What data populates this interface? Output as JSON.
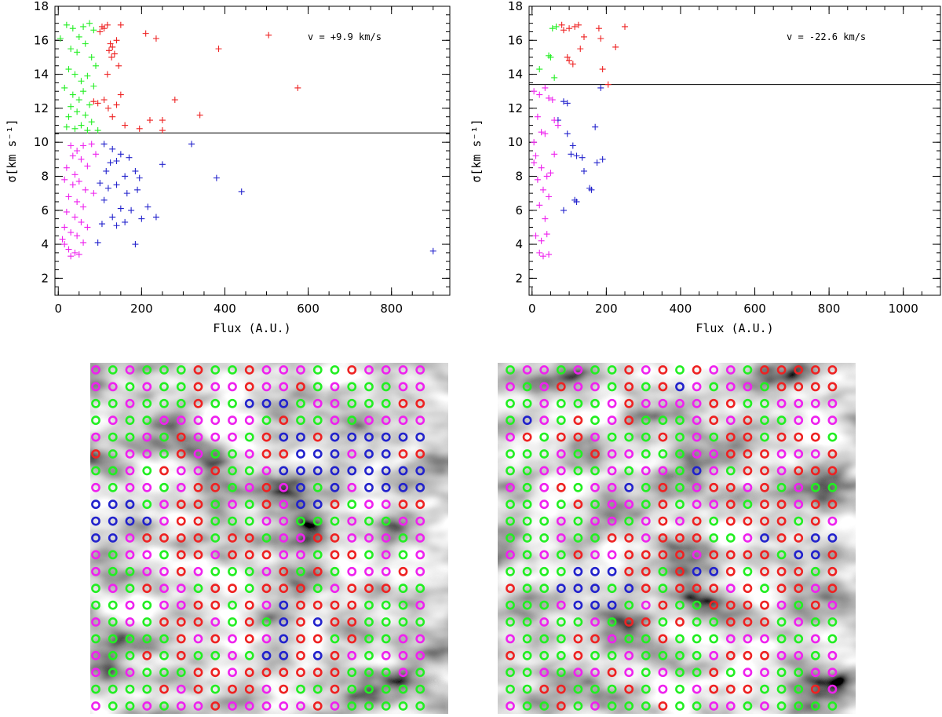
{
  "colors": {
    "red": "#ee2222",
    "green": "#22ee22",
    "blue": "#2222cc",
    "magenta": "#ee22ee"
  },
  "chart_data": [
    {
      "type": "scatter",
      "title": "",
      "annotation": "v = +9.9 km/s",
      "xlabel": "Flux  (A.U.)",
      "ylabel": "σ[km s⁻¹]",
      "xlim": [
        -8,
        940
      ],
      "ylim": [
        1,
        18
      ],
      "xticks": [
        0,
        200,
        400,
        600,
        800
      ],
      "yticks": [
        2,
        4,
        6,
        8,
        10,
        12,
        14,
        16,
        18
      ],
      "threshold_y": 10.55,
      "series": [
        {
          "name": "red",
          "color": "#ee2222",
          "points": [
            [
              105,
              16.8
            ],
            [
              110,
              16.7
            ],
            [
              118,
              16.9
            ],
            [
              100,
              16.5
            ],
            [
              125,
              15.8
            ],
            [
              130,
              15.6
            ],
            [
              122,
              15.4
            ],
            [
              135,
              15.2
            ],
            [
              128,
              15.0
            ],
            [
              140,
              16.0
            ],
            [
              150,
              16.9
            ],
            [
              210,
              16.4
            ],
            [
              235,
              16.1
            ],
            [
              385,
              15.5
            ],
            [
              505,
              16.3
            ],
            [
              575,
              13.2
            ],
            [
              118,
              14.0
            ],
            [
              145,
              14.5
            ],
            [
              280,
              12.5
            ],
            [
              340,
              11.6
            ],
            [
              220,
              11.3
            ],
            [
              250,
              11.3
            ],
            [
              110,
              12.5
            ],
            [
              95,
              12.3
            ],
            [
              120,
              12.0
            ],
            [
              130,
              11.5
            ],
            [
              140,
              12.2
            ],
            [
              160,
              11.0
            ],
            [
              195,
              10.8
            ],
            [
              250,
              10.7
            ],
            [
              150,
              12.8
            ],
            [
              85,
              12.4
            ]
          ]
        },
        {
          "name": "green",
          "color": "#22ee22",
          "points": [
            [
              5,
              16.1
            ],
            [
              20,
              16.9
            ],
            [
              35,
              16.7
            ],
            [
              50,
              16.2
            ],
            [
              60,
              16.8
            ],
            [
              75,
              17.0
            ],
            [
              85,
              16.6
            ],
            [
              30,
              15.5
            ],
            [
              45,
              15.3
            ],
            [
              65,
              15.8
            ],
            [
              80,
              15.0
            ],
            [
              25,
              14.3
            ],
            [
              40,
              14.0
            ],
            [
              55,
              13.6
            ],
            [
              70,
              13.9
            ],
            [
              90,
              14.5
            ],
            [
              15,
              13.2
            ],
            [
              35,
              12.8
            ],
            [
              50,
              12.5
            ],
            [
              60,
              13.0
            ],
            [
              75,
              12.2
            ],
            [
              25,
              11.5
            ],
            [
              45,
              11.8
            ],
            [
              65,
              11.6
            ],
            [
              80,
              11.2
            ],
            [
              20,
              10.9
            ],
            [
              40,
              10.8
            ],
            [
              55,
              11.0
            ],
            [
              70,
              10.7
            ],
            [
              95,
              10.7
            ],
            [
              30,
              12.1
            ],
            [
              85,
              13.3
            ]
          ]
        },
        {
          "name": "blue",
          "color": "#2222cc",
          "points": [
            [
              110,
              9.9
            ],
            [
              130,
              9.6
            ],
            [
              150,
              9.3
            ],
            [
              170,
              9.1
            ],
            [
              125,
              8.8
            ],
            [
              140,
              8.9
            ],
            [
              115,
              8.3
            ],
            [
              160,
              8.0
            ],
            [
              185,
              8.3
            ],
            [
              195,
              7.9
            ],
            [
              250,
              8.7
            ],
            [
              320,
              9.9
            ],
            [
              380,
              7.9
            ],
            [
              440,
              7.1
            ],
            [
              100,
              7.6
            ],
            [
              120,
              7.3
            ],
            [
              140,
              7.5
            ],
            [
              165,
              7.0
            ],
            [
              110,
              6.6
            ],
            [
              150,
              6.1
            ],
            [
              200,
              5.5
            ],
            [
              175,
              6.0
            ],
            [
              215,
              6.2
            ],
            [
              235,
              5.6
            ],
            [
              130,
              5.6
            ],
            [
              160,
              5.3
            ],
            [
              140,
              5.1
            ],
            [
              185,
              4.0
            ],
            [
              95,
              4.1
            ],
            [
              900,
              3.6
            ],
            [
              105,
              5.2
            ],
            [
              190,
              7.2
            ]
          ]
        },
        {
          "name": "magenta",
          "color": "#ee22ee",
          "points": [
            [
              30,
              9.8
            ],
            [
              45,
              9.5
            ],
            [
              60,
              9.8
            ],
            [
              80,
              9.9
            ],
            [
              35,
              9.2
            ],
            [
              55,
              9.0
            ],
            [
              20,
              8.5
            ],
            [
              40,
              8.1
            ],
            [
              70,
              8.6
            ],
            [
              15,
              7.8
            ],
            [
              35,
              7.5
            ],
            [
              50,
              7.7
            ],
            [
              65,
              7.2
            ],
            [
              25,
              6.8
            ],
            [
              45,
              6.5
            ],
            [
              60,
              6.2
            ],
            [
              20,
              5.9
            ],
            [
              40,
              5.6
            ],
            [
              55,
              5.3
            ],
            [
              15,
              5.0
            ],
            [
              30,
              4.7
            ],
            [
              45,
              4.5
            ],
            [
              60,
              4.1
            ],
            [
              15,
              4.0
            ],
            [
              25,
              3.7
            ],
            [
              40,
              3.5
            ],
            [
              50,
              3.4
            ],
            [
              30,
              3.3
            ],
            [
              10,
              4.3
            ],
            [
              70,
              5.0
            ],
            [
              85,
              7.0
            ],
            [
              90,
              9.3
            ]
          ]
        }
      ]
    },
    {
      "type": "scatter",
      "title": "",
      "annotation": "v = -22.6 km/s",
      "xlabel": "Flux  (A.U.)",
      "ylabel": "σ[km s⁻¹]",
      "xlim": [
        -8,
        1100
      ],
      "ylim": [
        1,
        18
      ],
      "xticks": [
        0,
        200,
        400,
        600,
        800,
        1000
      ],
      "yticks": [
        2,
        4,
        6,
        8,
        10,
        12,
        14,
        16,
        18
      ],
      "threshold_y": 13.4,
      "series": [
        {
          "name": "red",
          "color": "#ee2222",
          "points": [
            [
              80,
              16.9
            ],
            [
              85,
              16.6
            ],
            [
              100,
              16.7
            ],
            [
              115,
              16.8
            ],
            [
              125,
              16.9
            ],
            [
              180,
              16.7
            ],
            [
              250,
              16.8
            ],
            [
              140,
              16.2
            ],
            [
              225,
              15.6
            ],
            [
              95,
              15.0
            ],
            [
              100,
              14.8
            ],
            [
              110,
              14.6
            ],
            [
              130,
              15.5
            ],
            [
              185,
              16.1
            ],
            [
              190,
              14.3
            ],
            [
              205,
              13.4
            ]
          ]
        },
        {
          "name": "green",
          "color": "#22ee22",
          "points": [
            [
              55,
              16.7
            ],
            [
              65,
              16.8
            ],
            [
              45,
              15.1
            ],
            [
              50,
              15.0
            ],
            [
              20,
              14.3
            ],
            [
              60,
              13.8
            ]
          ]
        },
        {
          "name": "blue",
          "color": "#2222cc",
          "points": [
            [
              85,
              12.4
            ],
            [
              95,
              12.3
            ],
            [
              70,
              11.3
            ],
            [
              95,
              10.5
            ],
            [
              110,
              9.8
            ],
            [
              120,
              9.2
            ],
            [
              105,
              9.3
            ],
            [
              135,
              9.1
            ],
            [
              140,
              8.3
            ],
            [
              170,
              10.9
            ],
            [
              175,
              8.8
            ],
            [
              190,
              9.0
            ],
            [
              185,
              13.2
            ],
            [
              85,
              6.0
            ],
            [
              115,
              6.6
            ],
            [
              120,
              6.5
            ],
            [
              155,
              7.3
            ],
            [
              160,
              7.2
            ]
          ]
        },
        {
          "name": "magenta",
          "color": "#ee22ee",
          "points": [
            [
              5,
              13.0
            ],
            [
              20,
              12.8
            ],
            [
              35,
              13.2
            ],
            [
              45,
              12.6
            ],
            [
              55,
              12.5
            ],
            [
              60,
              11.3
            ],
            [
              70,
              11.0
            ],
            [
              15,
              11.5
            ],
            [
              25,
              10.6
            ],
            [
              35,
              10.5
            ],
            [
              5,
              10.0
            ],
            [
              10,
              9.2
            ],
            [
              25,
              8.5
            ],
            [
              40,
              8.0
            ],
            [
              5,
              8.8
            ],
            [
              15,
              7.8
            ],
            [
              30,
              7.2
            ],
            [
              45,
              6.8
            ],
            [
              20,
              6.3
            ],
            [
              35,
              5.5
            ],
            [
              10,
              4.5
            ],
            [
              25,
              4.2
            ],
            [
              40,
              4.6
            ],
            [
              20,
              3.5
            ],
            [
              30,
              3.3
            ],
            [
              45,
              3.4
            ],
            [
              50,
              8.2
            ],
            [
              60,
              9.3
            ]
          ]
        }
      ]
    }
  ],
  "maps": [
    {
      "grid": [
        "mgmgggrggrmmmggrmmmm",
        "mmgmggrmmrmmrgmgggmm",
        "ggmgggrggbbbgmmgggrr",
        "gmggmmmmmmgrggmgmmmm",
        "mggmgrmmmgrbbrbbbbbb",
        "rgmmgrmggmrrbbbmbbrr",
        "ggmgrmmrggmbbbbbbbbb",
        "mgmmgmrrgmrmbgbmbbbb",
        "bbbgmrrgmgrmbbrgmmrr",
        "bbbbmrrgggmmgggmggmm",
        "bbmrrrrgrrgmmrrmmmgm",
        "mgmmgrrmrrrmmgrrgmgm",
        "mggmmrmgggmrgrgmmmrm",
        "gmgrmmgrrgrrrgmrrrgg",
        "ggmgmmrrgrmbrrrrgggm",
        "mgmgrrrmgrgbrbrrgggg",
        "gggggrmrmrmbrrgrggmm",
        "mggrgrggmgbbrbrmgmmm",
        "mgmgggrrmrrrrrrgggmg",
        "ggggrmrgrrmrggrggggg",
        "mggmgmmrmmmmmrmggggg"
      ]
    },
    {
      "grid": [
        "gmmgmggrmrgrmmgrrrrr",
        "mgmrmmgrgrbmgmmgrrrr",
        "ggmgggmrmmmmrrggmmmm",
        "gbmgrgmrgggmrmrggmmm",
        "mrgrrmgggrgmgrrgrrrg",
        "gggmgrmmgggmmrrrmmmr",
        "ggmmggmgmmgbmgrrmrrr",
        "mgmrgmmbgrgmrrmrgmgg",
        "ggmgrgmmgrgmmrgrrmrr",
        "gggmgmmgmrmrgrrrrgrm",
        "gggmggrrmrrrggmbrrbb",
        "mgmgrmmrrrrmrrrrgbbr",
        "ggggbbbrrgrbbrgrrrgr",
        "rggbbbgbrgrrrmrgrrmr",
        "gggmbbbgmrggrrrrmgrm",
        "ggmggmgrrgrggrrrgmgg",
        "mgggrrmggrgggmmmggmg",
        "rgggrggmggggmrrrmmgm",
        "ggmgmmrmgmggrgmmggmm",
        "ggrrgggrgmgmrrrgggrm",
        "mggrgmgggrggmmgmgggg"
      ]
    }
  ]
}
